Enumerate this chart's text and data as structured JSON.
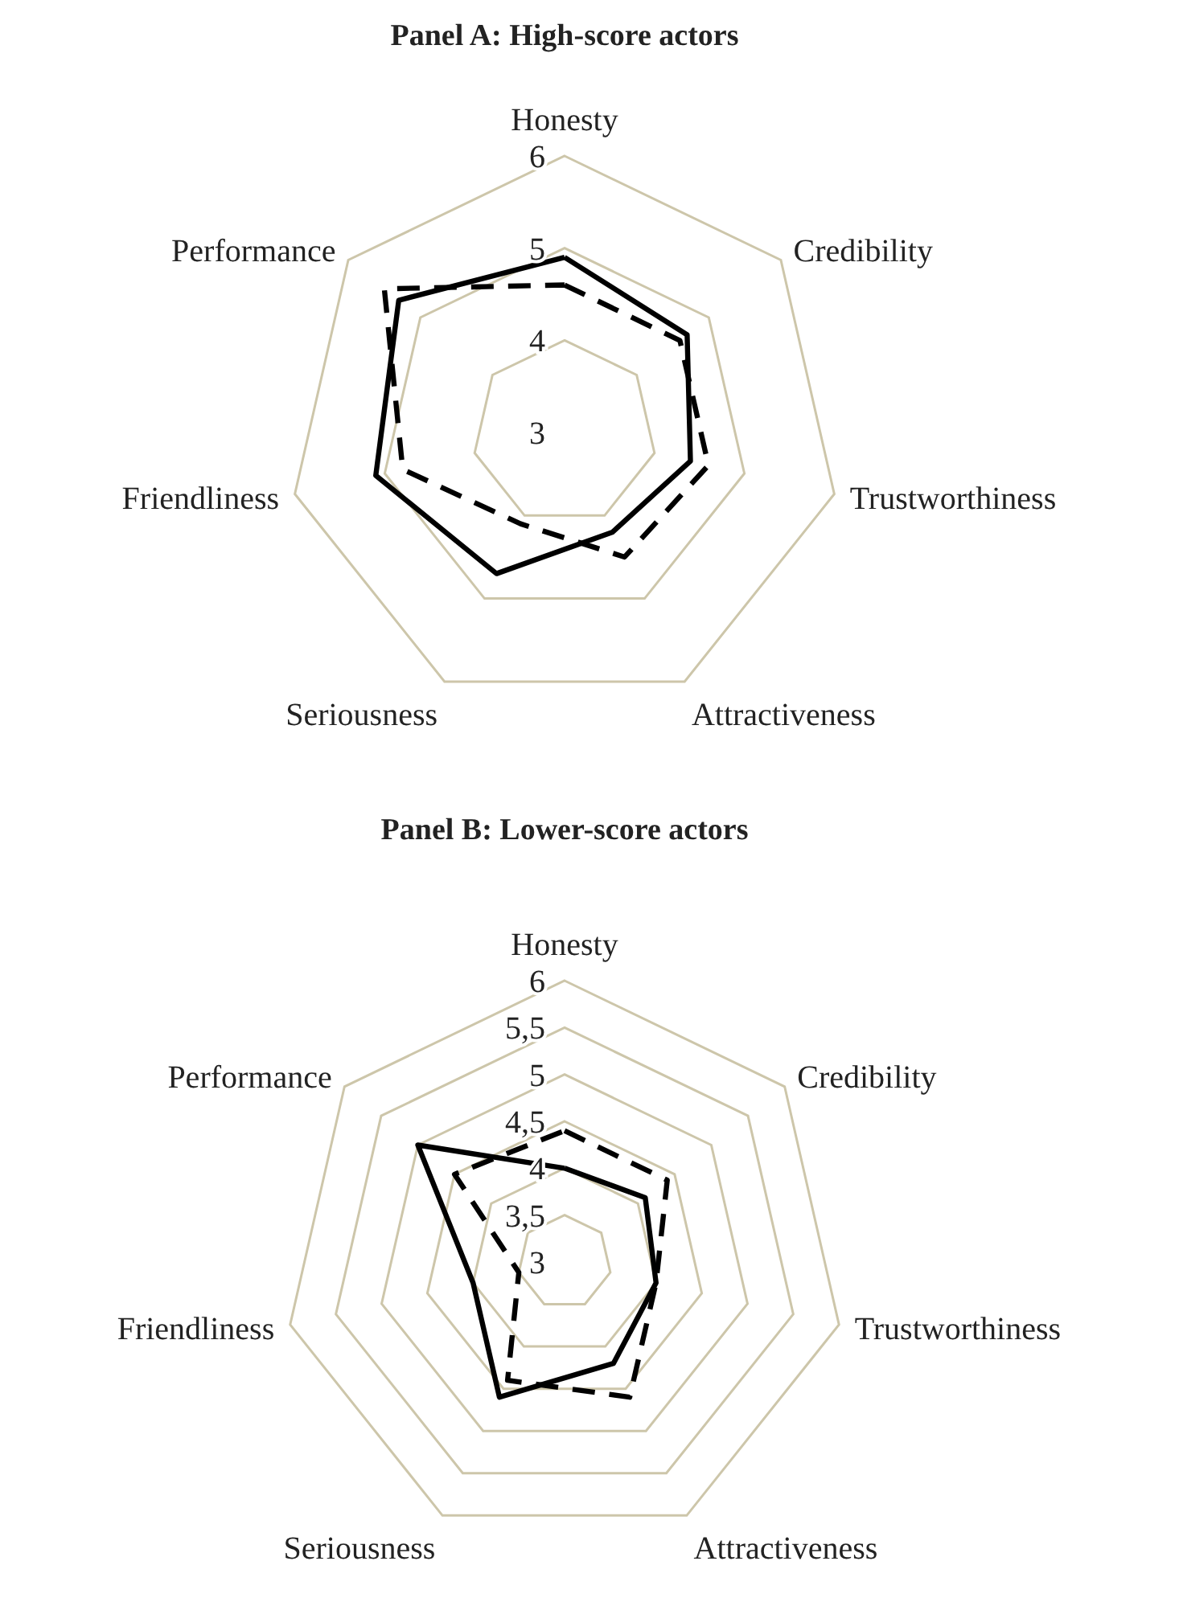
{
  "chart_data": [
    {
      "type": "radar",
      "title": "Panel A: High-score  actors",
      "categories": [
        "Honesty",
        "Credibility",
        "Trustworthiness",
        "Attractiveness",
        "Seriousness",
        "Friendliness",
        "Performance"
      ],
      "ylim": [
        3,
        6
      ],
      "yticks": [
        3,
        4,
        5,
        6
      ],
      "grid": true,
      "series": [
        {
          "color": "#000000",
          "line_style": "solid",
          "values": [
            4.9,
            4.7,
            4.4,
            4.2,
            4.7,
            5.1,
            5.3
          ]
        },
        {
          "color": "#000000",
          "line_style": "dashed",
          "values": [
            4.6,
            4.6,
            4.6,
            4.5,
            4.1,
            4.8,
            5.5
          ]
        }
      ]
    },
    {
      "type": "radar",
      "title": "Panel B: Lower-score  actors",
      "categories": [
        "Honesty",
        "Credibility",
        "Trustworthiness",
        "Attractiveness",
        "Seriousness",
        "Friendliness",
        "Performance"
      ],
      "ylim": [
        3,
        6
      ],
      "yticks": [
        3,
        {
          "value": 3.5,
          "label": "3,5"
        },
        4,
        {
          "value": 4.5,
          "label": "4,5"
        },
        5,
        {
          "value": 5.5,
          "label": "5,5"
        },
        6
      ],
      "grid": true,
      "series": [
        {
          "color": "#000000",
          "line_style": "solid",
          "values": [
            4.0,
            4.1,
            4.0,
            4.2,
            4.6,
            4.0,
            5.0
          ]
        },
        {
          "color": "#000000",
          "line_style": "dashed",
          "values": [
            4.4,
            4.4,
            4.0,
            4.6,
            4.4,
            3.5,
            4.5
          ]
        }
      ]
    }
  ]
}
